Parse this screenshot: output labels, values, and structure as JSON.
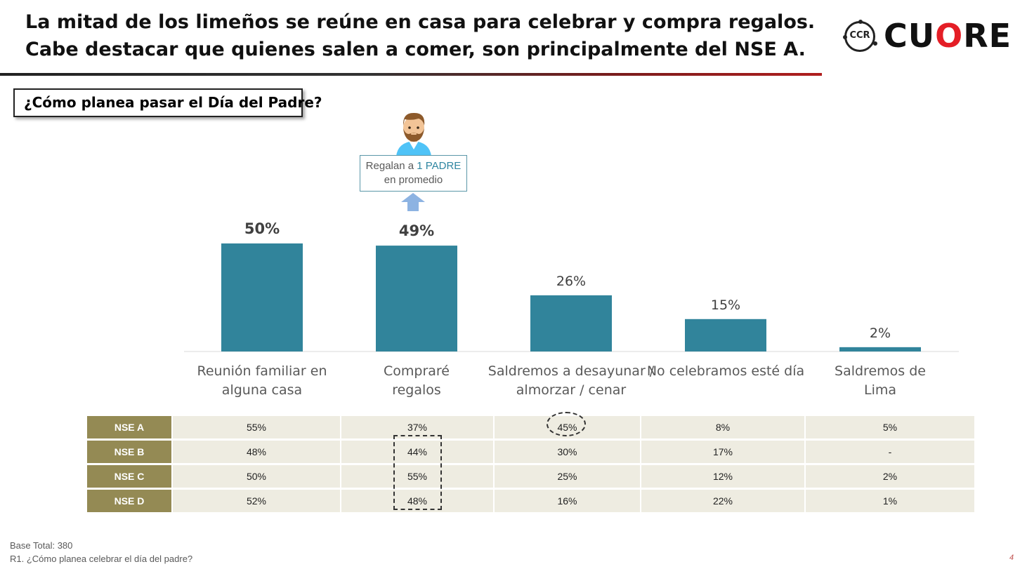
{
  "slide": {
    "title_line1": "La mitad de los limeños se reúne en casa para celebrar y compra regalos.",
    "title_line2": "Cabe destacar que quienes salen a comer, son principalmente del NSE A.",
    "logo": {
      "badge": "CCR",
      "word_prefix": "CU",
      "word_o": "O",
      "word_suffix": "RE",
      "accent_color": "#e41e26"
    },
    "question": "¿Cómo planea pasar el Día del Padre?",
    "callout": {
      "text_before": "Regalan a ",
      "highlight": "1 PADRE",
      "text_after": "en promedio",
      "icon": "man-avatar-icon"
    },
    "base_note": "Base Total: 380",
    "question_note": "R1. ¿Cómo planea celebrar el día del padre?",
    "page_number": "4"
  },
  "chart_data": {
    "type": "bar",
    "categories": [
      [
        "Reunión familiar en",
        "alguna casa"
      ],
      [
        "Compraré",
        "regalos"
      ],
      [
        "Saldremos a desayunar /",
        "almorzar / cenar"
      ],
      [
        "No celebramos esté día"
      ],
      [
        "Saldremos de",
        "Lima"
      ]
    ],
    "values": [
      50,
      49,
      26,
      15,
      2
    ],
    "value_labels": [
      "50%",
      "49%",
      "26%",
      "15%",
      "2%"
    ],
    "bold_labels": [
      true,
      true,
      false,
      false,
      false
    ],
    "bar_color": "#31849b",
    "ylim": [
      0,
      50
    ],
    "grid": false
  },
  "nse_table": {
    "rows": [
      {
        "label": "NSE A",
        "values": [
          "55%",
          "37%",
          "45%",
          "8%",
          "5%"
        ]
      },
      {
        "label": "NSE B",
        "values": [
          "48%",
          "44%",
          "30%",
          "17%",
          "-"
        ]
      },
      {
        "label": "NSE C",
        "values": [
          "50%",
          "55%",
          "25%",
          "12%",
          "2%"
        ]
      },
      {
        "label": "NSE D",
        "values": [
          "52%",
          "48%",
          "16%",
          "22%",
          "1%"
        ]
      }
    ],
    "header_color": "#948a54",
    "cell_color": "#eeece1"
  }
}
